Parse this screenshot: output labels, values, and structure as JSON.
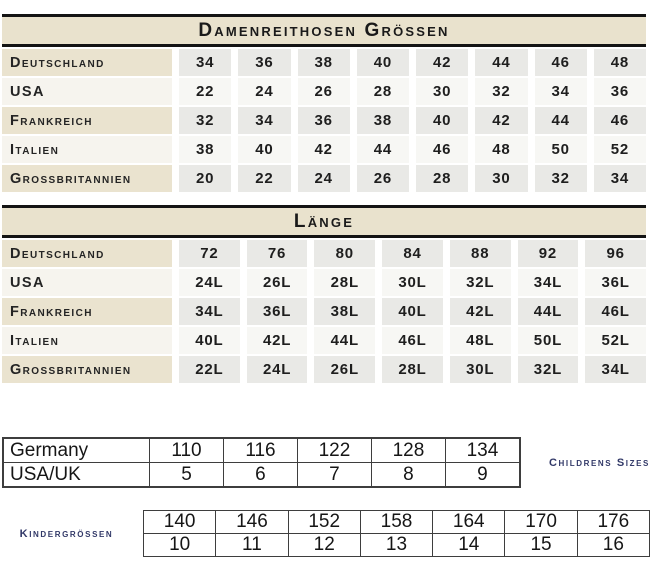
{
  "colors": {
    "header_beige": "#e9e2cd",
    "label_beige": "#eae3cf",
    "row_gray": "#e9e9e6",
    "row_light": "#f7f7f4",
    "line_black": "#141414",
    "border_dark": "#3e3e3e",
    "navy_label": "#323968",
    "text": "#1e1e1e"
  },
  "womens_sizes_table": {
    "title": "Damenreithosen Grössen",
    "rows": [
      {
        "label": "Deutschland",
        "values": [
          "34",
          "36",
          "38",
          "40",
          "42",
          "44",
          "46",
          "48"
        ]
      },
      {
        "label": "USA",
        "values": [
          "22",
          "24",
          "26",
          "28",
          "30",
          "32",
          "34",
          "36"
        ]
      },
      {
        "label": "Frankreich",
        "values": [
          "32",
          "34",
          "36",
          "38",
          "40",
          "42",
          "44",
          "46"
        ]
      },
      {
        "label": "Italien",
        "values": [
          "38",
          "40",
          "42",
          "44",
          "46",
          "48",
          "50",
          "52"
        ]
      },
      {
        "label": "Grossbritannien",
        "values": [
          "20",
          "22",
          "24",
          "26",
          "28",
          "30",
          "32",
          "34"
        ]
      }
    ]
  },
  "length_table": {
    "title": "Länge",
    "rows": [
      {
        "label": "Deutschland",
        "values": [
          "72",
          "76",
          "80",
          "84",
          "88",
          "92",
          "96"
        ]
      },
      {
        "label": "USA",
        "values": [
          "24L",
          "26L",
          "28L",
          "30L",
          "32L",
          "34L",
          "36L"
        ]
      },
      {
        "label": "Frankreich",
        "values": [
          "34L",
          "36L",
          "38L",
          "40L",
          "42L",
          "44L",
          "46L"
        ]
      },
      {
        "label": "Italien",
        "values": [
          "40L",
          "42L",
          "44L",
          "46L",
          "48L",
          "50L",
          "52L"
        ]
      },
      {
        "label": "Grossbritannien",
        "values": [
          "22L",
          "24L",
          "26L",
          "28L",
          "30L",
          "32L",
          "34L"
        ]
      }
    ]
  },
  "children_table": {
    "side_label": "Childrens Sizes",
    "rows": [
      {
        "label": "Germany",
        "values": [
          "110",
          "116",
          "122",
          "128",
          "134"
        ]
      },
      {
        "label": "USA/UK",
        "values": [
          "5",
          "6",
          "7",
          "8",
          "9"
        ]
      }
    ]
  },
  "kids_table": {
    "side_label": "Kindergrössen",
    "rows": [
      {
        "values": [
          "140",
          "146",
          "152",
          "158",
          "164",
          "170",
          "176"
        ]
      },
      {
        "values": [
          "10",
          "11",
          "12",
          "13",
          "14",
          "15",
          "16"
        ]
      }
    ]
  }
}
